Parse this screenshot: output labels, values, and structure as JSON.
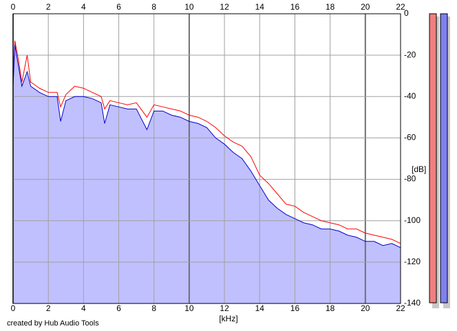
{
  "chart_data": {
    "type": "spectrum",
    "x_label": "[kHz]",
    "y_label": "[dB]",
    "credit": "created by Hub Audio Tools",
    "xlim": [
      0,
      22
    ],
    "ylim": [
      -140,
      0
    ],
    "xticks": [
      0,
      2,
      4,
      6,
      8,
      10,
      12,
      14,
      16,
      18,
      20,
      22
    ],
    "yticks": [
      0,
      -20,
      -40,
      -60,
      -80,
      -100,
      -120,
      -140
    ],
    "grid": true,
    "fill_color": "#c0c0ff",
    "x": [
      0,
      0.1,
      0.3,
      0.5,
      0.8,
      1,
      1.5,
      2,
      2.5,
      2.7,
      3,
      3.5,
      4,
      4.5,
      5,
      5.2,
      5.5,
      6,
      6.5,
      7,
      7.6,
      8,
      8.5,
      9,
      9.5,
      10,
      10.5,
      11,
      11.5,
      12,
      12.5,
      13,
      13.5,
      14,
      14.5,
      15,
      15.5,
      16,
      16.5,
      17,
      17.5,
      18,
      18.5,
      19,
      19.5,
      20,
      20.5,
      21,
      21.5,
      22
    ],
    "series": [
      {
        "color": "#ff0000",
        "values": [
          -33,
          -13,
          -22,
          -33,
          -20,
          -33,
          -36,
          -38,
          -38,
          -45,
          -39,
          -35,
          -36,
          -38,
          -40,
          -46,
          -42,
          -43,
          -44,
          -43,
          -50,
          -44,
          -45,
          -46,
          -47,
          -49,
          -50,
          -52,
          -55,
          -59,
          -62,
          -64,
          -69,
          -78,
          -82,
          -87,
          -92,
          -93,
          -96,
          -98,
          -100,
          -101,
          -102,
          -104,
          -104,
          -106,
          -107,
          -108,
          -109,
          -111
        ]
      },
      {
        "color": "#0000cc",
        "values": [
          -35,
          -15,
          -25,
          -35,
          -28,
          -35,
          -38,
          -40,
          -40,
          -52,
          -42,
          -40,
          -40,
          -41,
          -43,
          -53,
          -44,
          -45,
          -46,
          -46,
          -56,
          -47,
          -47,
          -49,
          -50,
          -52,
          -53,
          -55,
          -60,
          -63,
          -67,
          -70,
          -76,
          -83,
          -90,
          -94,
          -97,
          -99,
          -101,
          -102,
          -104,
          -104,
          -105,
          -107,
          -108,
          -110,
          -110,
          -112,
          -111,
          -113
        ]
      }
    ]
  }
}
